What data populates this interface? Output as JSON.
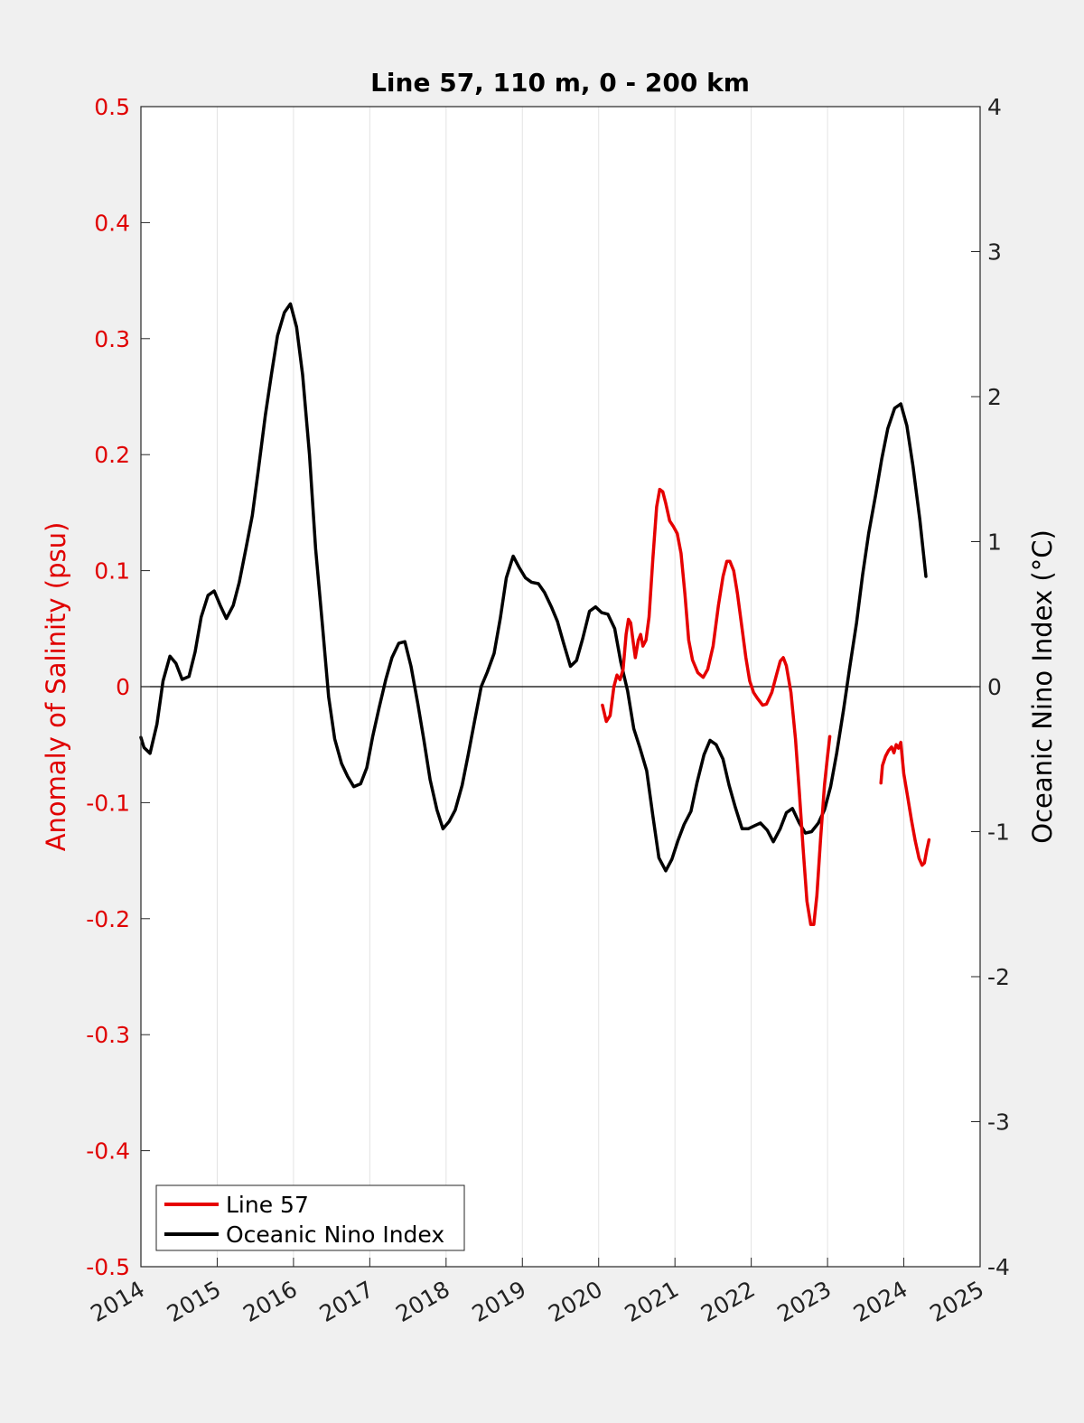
{
  "chart_data": {
    "type": "line",
    "title": "Line 57, 110 m, 0 - 200 km",
    "ylabel_left": "Anomaly of Salinity (psu)",
    "ylabel_right": "Oceanic Nino Index (°C)",
    "xlim": [
      2014,
      2025
    ],
    "ylim_left": [
      -0.5,
      0.5
    ],
    "ylim_right": [
      -4,
      4
    ],
    "x_ticks": [
      "2014",
      "2015",
      "2016",
      "2017",
      "2018",
      "2019",
      "2020",
      "2021",
      "2022",
      "2023",
      "2024",
      "2025"
    ],
    "y_ticks_left": [
      "-0.5",
      "-0.4",
      "-0.3",
      "-0.2",
      "-0.1",
      "0",
      "0.1",
      "0.2",
      "0.3",
      "0.4",
      "0.5"
    ],
    "y_ticks_right": [
      "-4",
      "-3",
      "-2",
      "-1",
      "0",
      "1",
      "2",
      "3",
      "4"
    ],
    "grid": "vertical",
    "zero_line": true,
    "legend": {
      "position": "bottom-left"
    },
    "series": [
      {
        "name": "Line 57",
        "axis": "left",
        "color": "#e60000",
        "segments": [
          [
            [
              2020.05,
              -0.016
            ],
            [
              2020.1,
              -0.03
            ],
            [
              2020.15,
              -0.025
            ],
            [
              2020.2,
              0.0
            ],
            [
              2020.24,
              0.01
            ],
            [
              2020.28,
              0.006
            ],
            [
              2020.32,
              0.015
            ],
            [
              2020.36,
              0.045
            ],
            [
              2020.39,
              0.058
            ],
            [
              2020.42,
              0.055
            ],
            [
              2020.45,
              0.04
            ],
            [
              2020.48,
              0.025
            ],
            [
              2020.52,
              0.04
            ],
            [
              2020.55,
              0.045
            ],
            [
              2020.58,
              0.035
            ],
            [
              2020.62,
              0.04
            ],
            [
              2020.66,
              0.06
            ],
            [
              2020.71,
              0.11
            ],
            [
              2020.76,
              0.155
            ],
            [
              2020.8,
              0.17
            ],
            [
              2020.84,
              0.168
            ],
            [
              2020.88,
              0.158
            ],
            [
              2020.93,
              0.143
            ],
            [
              2020.98,
              0.138
            ],
            [
              2021.03,
              0.132
            ],
            [
              2021.08,
              0.115
            ],
            [
              2021.13,
              0.08
            ],
            [
              2021.18,
              0.04
            ],
            [
              2021.23,
              0.023
            ],
            [
              2021.3,
              0.012
            ],
            [
              2021.37,
              0.008
            ],
            [
              2021.43,
              0.015
            ],
            [
              2021.5,
              0.035
            ],
            [
              2021.57,
              0.07
            ],
            [
              2021.63,
              0.095
            ],
            [
              2021.68,
              0.108
            ],
            [
              2021.72,
              0.108
            ],
            [
              2021.77,
              0.1
            ],
            [
              2021.82,
              0.08
            ],
            [
              2021.88,
              0.05
            ],
            [
              2021.93,
              0.025
            ],
            [
              2021.98,
              0.005
            ],
            [
              2022.03,
              -0.005
            ],
            [
              2022.08,
              -0.01
            ],
            [
              2022.15,
              -0.016
            ],
            [
              2022.2,
              -0.015
            ],
            [
              2022.27,
              -0.005
            ],
            [
              2022.33,
              0.01
            ],
            [
              2022.38,
              0.022
            ],
            [
              2022.42,
              0.025
            ],
            [
              2022.46,
              0.018
            ],
            [
              2022.52,
              -0.005
            ],
            [
              2022.58,
              -0.045
            ],
            [
              2022.63,
              -0.09
            ],
            [
              2022.68,
              -0.14
            ],
            [
              2022.73,
              -0.185
            ],
            [
              2022.78,
              -0.205
            ],
            [
              2022.82,
              -0.205
            ],
            [
              2022.86,
              -0.18
            ],
            [
              2022.91,
              -0.13
            ],
            [
              2022.96,
              -0.085
            ],
            [
              2023.0,
              -0.06
            ],
            [
              2023.03,
              -0.043
            ]
          ],
          [
            [
              2023.7,
              -0.083
            ],
            [
              2023.72,
              -0.068
            ],
            [
              2023.76,
              -0.06
            ],
            [
              2023.8,
              -0.055
            ],
            [
              2023.84,
              -0.052
            ],
            [
              2023.87,
              -0.057
            ],
            [
              2023.9,
              -0.05
            ],
            [
              2023.93,
              -0.053
            ],
            [
              2023.96,
              -0.048
            ],
            [
              2024.0,
              -0.075
            ],
            [
              2024.05,
              -0.095
            ],
            [
              2024.1,
              -0.115
            ],
            [
              2024.15,
              -0.133
            ],
            [
              2024.2,
              -0.148
            ],
            [
              2024.24,
              -0.154
            ],
            [
              2024.27,
              -0.152
            ],
            [
              2024.3,
              -0.141
            ],
            [
              2024.33,
              -0.132
            ]
          ]
        ]
      },
      {
        "name": "Oceanic Nino Index",
        "axis": "right",
        "color": "#000000",
        "segments": [
          [
            [
              2014.0,
              -0.35
            ],
            [
              2014.04,
              -0.42
            ],
            [
              2014.12,
              -0.46
            ],
            [
              2014.21,
              -0.26
            ],
            [
              2014.29,
              0.04
            ],
            [
              2014.38,
              0.21
            ],
            [
              2014.46,
              0.16
            ],
            [
              2014.54,
              0.05
            ],
            [
              2014.63,
              0.07
            ],
            [
              2014.71,
              0.24
            ],
            [
              2014.79,
              0.48
            ],
            [
              2014.88,
              0.63
            ],
            [
              2014.96,
              0.66
            ],
            [
              2015.04,
              0.56
            ],
            [
              2015.12,
              0.47
            ],
            [
              2015.21,
              0.56
            ],
            [
              2015.29,
              0.72
            ],
            [
              2015.38,
              0.96
            ],
            [
              2015.46,
              1.18
            ],
            [
              2015.54,
              1.5
            ],
            [
              2015.63,
              1.87
            ],
            [
              2015.71,
              2.15
            ],
            [
              2015.79,
              2.42
            ],
            [
              2015.88,
              2.58
            ],
            [
              2015.96,
              2.64
            ],
            [
              2016.04,
              2.48
            ],
            [
              2016.12,
              2.15
            ],
            [
              2016.21,
              1.6
            ],
            [
              2016.29,
              0.95
            ],
            [
              2016.38,
              0.42
            ],
            [
              2016.46,
              -0.07
            ],
            [
              2016.54,
              -0.36
            ],
            [
              2016.63,
              -0.53
            ],
            [
              2016.71,
              -0.62
            ],
            [
              2016.79,
              -0.69
            ],
            [
              2016.88,
              -0.67
            ],
            [
              2016.96,
              -0.56
            ],
            [
              2017.04,
              -0.34
            ],
            [
              2017.12,
              -0.15
            ],
            [
              2017.21,
              0.05
            ],
            [
              2017.29,
              0.2
            ],
            [
              2017.38,
              0.3
            ],
            [
              2017.46,
              0.31
            ],
            [
              2017.54,
              0.14
            ],
            [
              2017.63,
              -0.12
            ],
            [
              2017.71,
              -0.37
            ],
            [
              2017.79,
              -0.64
            ],
            [
              2017.88,
              -0.85
            ],
            [
              2017.96,
              -0.98
            ],
            [
              2018.04,
              -0.93
            ],
            [
              2018.12,
              -0.85
            ],
            [
              2018.21,
              -0.68
            ],
            [
              2018.29,
              -0.47
            ],
            [
              2018.38,
              -0.22
            ],
            [
              2018.46,
              0.0
            ],
            [
              2018.54,
              0.1
            ],
            [
              2018.63,
              0.23
            ],
            [
              2018.71,
              0.47
            ],
            [
              2018.79,
              0.75
            ],
            [
              2018.88,
              0.9
            ],
            [
              2018.96,
              0.82
            ],
            [
              2019.04,
              0.75
            ],
            [
              2019.12,
              0.72
            ],
            [
              2019.21,
              0.71
            ],
            [
              2019.29,
              0.65
            ],
            [
              2019.38,
              0.55
            ],
            [
              2019.46,
              0.45
            ],
            [
              2019.54,
              0.3
            ],
            [
              2019.63,
              0.14
            ],
            [
              2019.71,
              0.18
            ],
            [
              2019.79,
              0.33
            ],
            [
              2019.88,
              0.52
            ],
            [
              2019.96,
              0.55
            ],
            [
              2020.04,
              0.51
            ],
            [
              2020.12,
              0.5
            ],
            [
              2020.21,
              0.4
            ],
            [
              2020.29,
              0.17
            ],
            [
              2020.38,
              -0.03
            ],
            [
              2020.46,
              -0.29
            ],
            [
              2020.54,
              -0.42
            ],
            [
              2020.63,
              -0.58
            ],
            [
              2020.71,
              -0.89
            ],
            [
              2020.79,
              -1.18
            ],
            [
              2020.88,
              -1.27
            ],
            [
              2020.96,
              -1.19
            ],
            [
              2021.04,
              -1.06
            ],
            [
              2021.12,
              -0.95
            ],
            [
              2021.21,
              -0.86
            ],
            [
              2021.29,
              -0.66
            ],
            [
              2021.38,
              -0.47
            ],
            [
              2021.46,
              -0.37
            ],
            [
              2021.54,
              -0.4
            ],
            [
              2021.63,
              -0.5
            ],
            [
              2021.71,
              -0.68
            ],
            [
              2021.79,
              -0.83
            ],
            [
              2021.88,
              -0.98
            ],
            [
              2021.96,
              -0.98
            ],
            [
              2022.04,
              -0.96
            ],
            [
              2022.12,
              -0.94
            ],
            [
              2022.21,
              -0.99
            ],
            [
              2022.29,
              -1.07
            ],
            [
              2022.38,
              -0.98
            ],
            [
              2022.46,
              -0.87
            ],
            [
              2022.54,
              -0.84
            ],
            [
              2022.63,
              -0.94
            ],
            [
              2022.71,
              -1.01
            ],
            [
              2022.79,
              -1.0
            ],
            [
              2022.88,
              -0.94
            ],
            [
              2022.96,
              -0.85
            ],
            [
              2023.04,
              -0.69
            ],
            [
              2023.12,
              -0.46
            ],
            [
              2023.21,
              -0.16
            ],
            [
              2023.29,
              0.13
            ],
            [
              2023.38,
              0.44
            ],
            [
              2023.46,
              0.77
            ],
            [
              2023.54,
              1.06
            ],
            [
              2023.63,
              1.32
            ],
            [
              2023.71,
              1.57
            ],
            [
              2023.79,
              1.78
            ],
            [
              2023.88,
              1.92
            ],
            [
              2023.96,
              1.95
            ],
            [
              2024.04,
              1.8
            ],
            [
              2024.12,
              1.52
            ],
            [
              2024.21,
              1.15
            ],
            [
              2024.29,
              0.76
            ]
          ]
        ]
      }
    ]
  }
}
